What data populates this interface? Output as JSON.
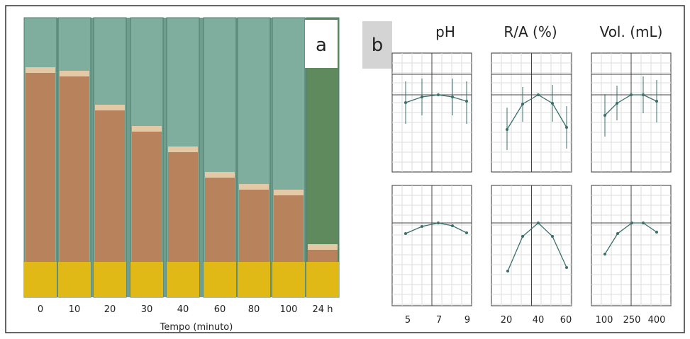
{
  "panel_a": {
    "label": "a",
    "tube_labels": [
      "0",
      "10",
      "20",
      "30",
      "40",
      "60",
      "80",
      "100",
      "24 h"
    ],
    "x_label": "Tempo (minuto)"
  },
  "panel_b": {
    "label": "b",
    "factors": [
      {
        "name": "pH",
        "ticks": [
          "5",
          "7",
          "9"
        ]
      },
      {
        "name": "R/A (%)",
        "ticks": [
          "20",
          "40",
          "60"
        ]
      },
      {
        "name": "Vol. (mL)",
        "ticks": [
          "100",
          "250",
          "400"
        ]
      }
    ]
  }
}
